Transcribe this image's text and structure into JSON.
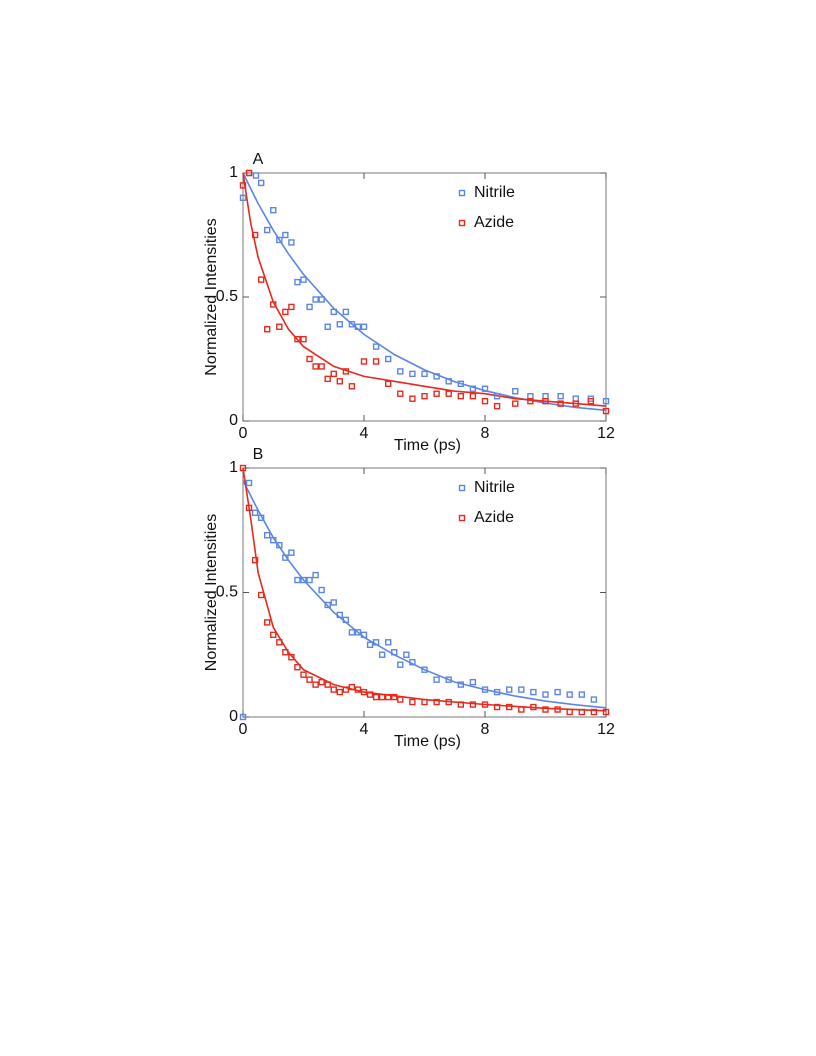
{
  "chart_data": [
    {
      "type": "scatter",
      "label": "A",
      "xlabel": "Time (ps)",
      "ylabel": "Normalized Intensities",
      "xlim": [
        0,
        12
      ],
      "ylim": [
        0,
        1
      ],
      "xticks": [
        0,
        4,
        8,
        12
      ],
      "yticks": [
        0,
        0.5,
        1
      ],
      "series": [
        {
          "name": "Nitrile",
          "color": "#5b86e5",
          "x": [
            0,
            0.2,
            0.43,
            0.6,
            0.8,
            1.0,
            1.2,
            1.4,
            1.6,
            1.8,
            2.0,
            2.2,
            2.4,
            2.6,
            2.8,
            3.0,
            3.2,
            3.4,
            3.6,
            3.8,
            4.0,
            4.4,
            4.8,
            5.2,
            5.6,
            6.0,
            6.4,
            6.8,
            7.2,
            7.6,
            8.0,
            8.4,
            9.0,
            9.5,
            10,
            10.5,
            11,
            11.5,
            12
          ],
          "values": [
            0.9,
            1.0,
            0.99,
            0.96,
            0.77,
            0.85,
            0.73,
            0.75,
            0.72,
            0.56,
            0.57,
            0.46,
            0.49,
            0.49,
            0.38,
            0.44,
            0.39,
            0.44,
            0.39,
            0.38,
            0.38,
            0.3,
            0.25,
            0.2,
            0.19,
            0.19,
            0.18,
            0.16,
            0.15,
            0.13,
            0.13,
            0.1,
            0.12,
            0.1,
            0.1,
            0.1,
            0.09,
            0.09,
            0.08
          ]
        },
        {
          "name": "Azide",
          "color": "#e8291c",
          "x": [
            0,
            0.2,
            0.4,
            0.6,
            0.8,
            1.0,
            1.2,
            1.4,
            1.6,
            1.8,
            2.0,
            2.2,
            2.4,
            2.6,
            2.8,
            3.0,
            3.2,
            3.4,
            3.6,
            4.0,
            4.4,
            4.8,
            5.2,
            5.6,
            6.0,
            6.4,
            6.8,
            7.2,
            7.6,
            8.0,
            8.4,
            9.0,
            9.5,
            10,
            10.5,
            11,
            11.5,
            12
          ],
          "values": [
            0.95,
            1.0,
            0.75,
            0.57,
            0.37,
            0.47,
            0.38,
            0.44,
            0.46,
            0.33,
            0.33,
            0.25,
            0.22,
            0.22,
            0.17,
            0.19,
            0.16,
            0.2,
            0.14,
            0.24,
            0.24,
            0.15,
            0.11,
            0.09,
            0.1,
            0.11,
            0.11,
            0.1,
            0.1,
            0.08,
            0.06,
            0.07,
            0.08,
            0.08,
            0.07,
            0.07,
            0.08,
            0.04
          ]
        }
      ],
      "fits": [
        {
          "color": "#5b86e5",
          "x": [
            0,
            0.5,
            1,
            1.5,
            2,
            3,
            4,
            5,
            6,
            7,
            8,
            9,
            10,
            11,
            12
          ],
          "values": [
            1,
            0.877,
            0.769,
            0.674,
            0.591,
            0.454,
            0.349,
            0.268,
            0.206,
            0.158,
            0.122,
            0.094,
            0.072,
            0.055,
            0.043
          ]
        },
        {
          "color": "#e8291c",
          "x": [
            0,
            0.25,
            0.5,
            1,
            1.5,
            2,
            3,
            4,
            5,
            6,
            7,
            8,
            9,
            10,
            11,
            12
          ],
          "values": [
            1,
            0.8,
            0.66,
            0.48,
            0.37,
            0.3,
            0.22,
            0.18,
            0.16,
            0.14,
            0.12,
            0.11,
            0.09,
            0.08,
            0.07,
            0.06
          ]
        }
      ]
    },
    {
      "type": "scatter",
      "label": "B",
      "xlabel": "Time (ps)",
      "ylabel": "Normalized Intensities",
      "xlim": [
        0,
        12
      ],
      "ylim": [
        0,
        1
      ],
      "xticks": [
        0,
        4,
        8,
        12
      ],
      "yticks": [
        0,
        0.5,
        1
      ],
      "series": [
        {
          "name": "Nitrile",
          "color": "#5b86e5",
          "x": [
            0,
            0.2,
            0.4,
            0.6,
            0.8,
            1.0,
            1.2,
            1.4,
            1.6,
            1.8,
            2.0,
            2.2,
            2.4,
            2.6,
            2.8,
            3.0,
            3.2,
            3.4,
            3.6,
            3.8,
            4.0,
            4.2,
            4.4,
            4.6,
            4.8,
            5.0,
            5.2,
            5.4,
            5.6,
            6.0,
            6.4,
            6.8,
            7.2,
            7.6,
            8.0,
            8.4,
            8.8,
            9.2,
            9.6,
            10,
            10.4,
            10.8,
            11.2,
            11.6
          ],
          "values": [
            0,
            0.94,
            0.82,
            0.8,
            0.73,
            0.71,
            0.69,
            0.64,
            0.66,
            0.55,
            0.55,
            0.55,
            0.57,
            0.51,
            0.45,
            0.46,
            0.41,
            0.39,
            0.34,
            0.34,
            0.33,
            0.29,
            0.3,
            0.25,
            0.3,
            0.26,
            0.21,
            0.25,
            0.22,
            0.19,
            0.15,
            0.15,
            0.13,
            0.14,
            0.11,
            0.1,
            0.11,
            0.11,
            0.1,
            0.09,
            0.1,
            0.09,
            0.09,
            0.07
          ]
        },
        {
          "name": "Azide",
          "color": "#e8291c",
          "x": [
            0,
            0.2,
            0.4,
            0.6,
            0.8,
            1.0,
            1.2,
            1.4,
            1.6,
            1.8,
            2.0,
            2.2,
            2.4,
            2.6,
            2.8,
            3.0,
            3.2,
            3.4,
            3.6,
            3.8,
            4.0,
            4.2,
            4.4,
            4.6,
            4.8,
            5.0,
            5.2,
            5.6,
            6.0,
            6.4,
            6.8,
            7.2,
            7.6,
            8.0,
            8.4,
            8.8,
            9.2,
            9.6,
            10,
            10.4,
            10.8,
            11.2,
            11.6,
            12
          ],
          "values": [
            1.0,
            0.84,
            0.63,
            0.49,
            0.38,
            0.33,
            0.3,
            0.26,
            0.24,
            0.2,
            0.17,
            0.15,
            0.13,
            0.14,
            0.13,
            0.11,
            0.1,
            0.11,
            0.12,
            0.11,
            0.1,
            0.09,
            0.08,
            0.08,
            0.08,
            0.08,
            0.07,
            0.06,
            0.06,
            0.06,
            0.06,
            0.05,
            0.05,
            0.05,
            0.04,
            0.04,
            0.03,
            0.04,
            0.03,
            0.03,
            0.02,
            0.02,
            0.02,
            0.02
          ]
        }
      ],
      "fits": [
        {
          "color": "#5b86e5",
          "x": [
            0,
            0.5,
            1,
            1.5,
            2,
            3,
            4,
            5,
            6,
            7,
            8,
            9,
            10,
            11,
            12
          ],
          "values": [
            0.95,
            0.83,
            0.72,
            0.63,
            0.55,
            0.42,
            0.32,
            0.25,
            0.19,
            0.14,
            0.11,
            0.084,
            0.064,
            0.049,
            0.037
          ]
        },
        {
          "color": "#e8291c",
          "x": [
            0,
            0.25,
            0.5,
            1,
            1.5,
            2,
            3,
            4,
            5,
            6,
            8,
            10,
            12
          ],
          "values": [
            1,
            0.8,
            0.58,
            0.36,
            0.26,
            0.19,
            0.13,
            0.1,
            0.085,
            0.07,
            0.05,
            0.035,
            0.025
          ]
        }
      ]
    }
  ]
}
